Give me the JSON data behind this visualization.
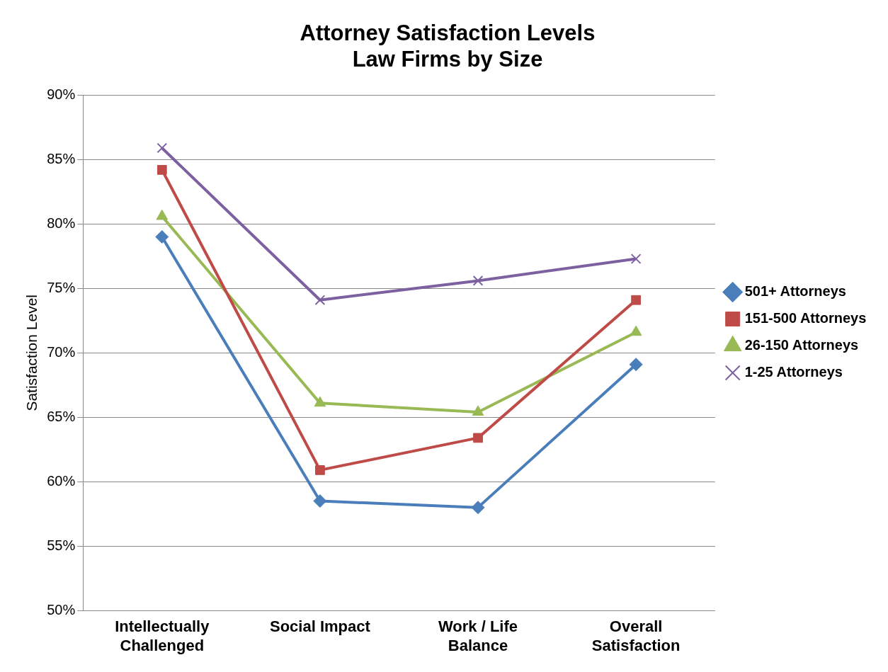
{
  "chart_data": {
    "type": "line",
    "title": "Attorney Satisfaction Levels\nLaw Firms by Size",
    "ylabel": "Satisfaction Level",
    "categories": [
      "Intellectually\nChallenged",
      "Social Impact",
      "Work / Life\nBalance",
      "Overall\nSatisfaction"
    ],
    "series": [
      {
        "name": "501+ Attorneys",
        "color": "#4a7ebb",
        "marker": "diamond",
        "values": [
          79.0,
          58.5,
          58.0,
          69.1
        ]
      },
      {
        "name": "151-500 Attorneys",
        "color": "#be4b48",
        "marker": "square",
        "values": [
          84.2,
          60.9,
          63.4,
          74.1
        ]
      },
      {
        "name": "26-150 Attorneys",
        "color": "#98b954",
        "marker": "triangle",
        "values": [
          80.6,
          66.1,
          65.4,
          71.6
        ]
      },
      {
        "name": "1-25 Attorneys",
        "color": "#7d60a0",
        "marker": "cross",
        "values": [
          85.9,
          74.1,
          75.6,
          77.3
        ]
      }
    ],
    "ylim": [
      50,
      90
    ],
    "yticks": [
      {
        "value": 50,
        "label": "50%"
      },
      {
        "value": 55,
        "label": "55%"
      },
      {
        "value": 60,
        "label": "60%"
      },
      {
        "value": 65,
        "label": "65%"
      },
      {
        "value": 70,
        "label": "70%"
      },
      {
        "value": 75,
        "label": "75%"
      },
      {
        "value": 80,
        "label": "80%"
      },
      {
        "value": 85,
        "label": "85%"
      },
      {
        "value": 90,
        "label": "90%"
      }
    ],
    "grid": "y",
    "legend": "right",
    "line_style": "solid"
  }
}
